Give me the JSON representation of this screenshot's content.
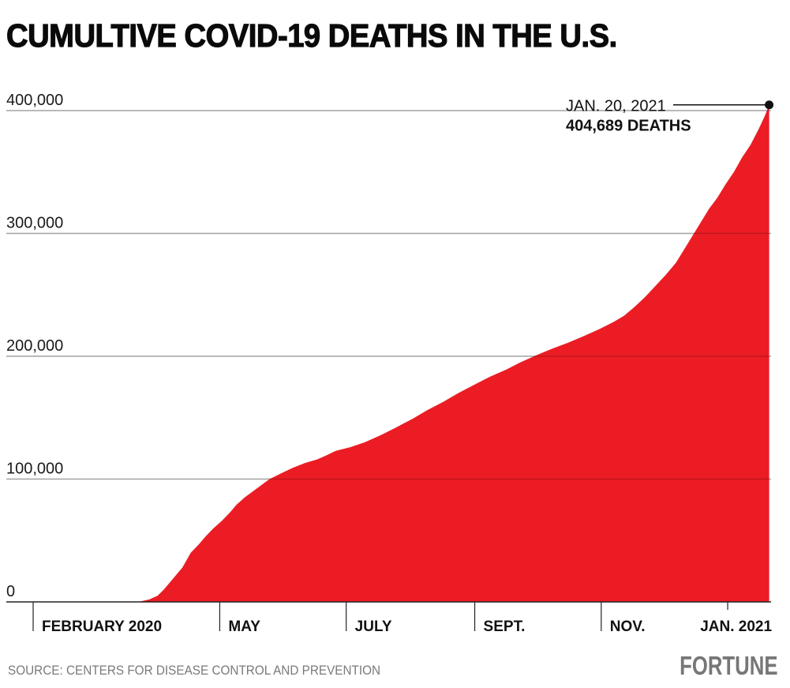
{
  "title": "CUMULTIVE COVID-19 DEATHS  IN THE U.S.",
  "source": "SOURCE: CENTERS FOR DISEASE CONTROL AND PREVENTION",
  "brand": "FORTUNE",
  "colors": {
    "area": "#ec1c24",
    "gridline": "#c8c8c8",
    "axis": "#222222",
    "text": "#111111",
    "source": "#7a7a7a",
    "brand": "#777777"
  },
  "annotation": {
    "date": "JAN. 20, 2021",
    "value_label": "404,689 DEATHS"
  },
  "chart_data": {
    "type": "area",
    "title": "CUMULTIVE COVID-19 DEATHS  IN THE U.S.",
    "xlabel": "",
    "ylabel": "",
    "x_unit": "days since Feb. 1, 2020",
    "ylim": [
      0,
      410000
    ],
    "xlim": [
      -13,
      355
    ],
    "grid": true,
    "y_ticks": [
      {
        "value": 0,
        "label": "0"
      },
      {
        "value": 100000,
        "label": "100,000"
      },
      {
        "value": 200000,
        "label": "200,000"
      },
      {
        "value": 300000,
        "label": "300,000"
      },
      {
        "value": 400000,
        "label": "400,000"
      }
    ],
    "x_ticks": [
      {
        "day": 0,
        "label": "FEBRUARY 2020"
      },
      {
        "day": 90,
        "label": "MAY"
      },
      {
        "day": 151,
        "label": "JULY"
      },
      {
        "day": 213,
        "label": "SEPT."
      },
      {
        "day": 274,
        "label": "NOV."
      },
      {
        "day": 335,
        "label": "JAN. 2021"
      }
    ],
    "series": [
      {
        "name": "Cumulative deaths",
        "x": [
          -13,
          0,
          20,
          40,
          48,
          52,
          56,
          60,
          63,
          66,
          69,
          72,
          76,
          80,
          83,
          87,
          91,
          95,
          98,
          102,
          106,
          110,
          114,
          120,
          125,
          131,
          137,
          141,
          146,
          153,
          160,
          168,
          175,
          183,
          190,
          198,
          205,
          213,
          220,
          228,
          235,
          243,
          250,
          258,
          265,
          273,
          280,
          285,
          290,
          295,
          300,
          305,
          310,
          314,
          318,
          322,
          326,
          330,
          334,
          338,
          342,
          346,
          350,
          353,
          355
        ],
        "y": [
          0,
          0,
          0,
          0,
          0,
          500,
          2000,
          5000,
          10000,
          16000,
          22000,
          28000,
          40000,
          47000,
          53000,
          60000,
          66000,
          73000,
          79000,
          85000,
          90000,
          95000,
          100000,
          105000,
          109000,
          113000,
          116000,
          119000,
          123000,
          126000,
          130000,
          136000,
          142000,
          149000,
          156000,
          163000,
          170000,
          177000,
          183000,
          189000,
          195000,
          201000,
          206000,
          211000,
          216000,
          222000,
          228000,
          233000,
          240000,
          248000,
          257000,
          266000,
          276000,
          287000,
          298000,
          309000,
          320000,
          329000,
          340000,
          350000,
          362000,
          372000,
          385000,
          396000,
          404689
        ]
      }
    ],
    "annotations": [
      {
        "day": 355,
        "value": 404689,
        "text": [
          "JAN. 20, 2021",
          "404,689 DEATHS"
        ]
      }
    ]
  }
}
